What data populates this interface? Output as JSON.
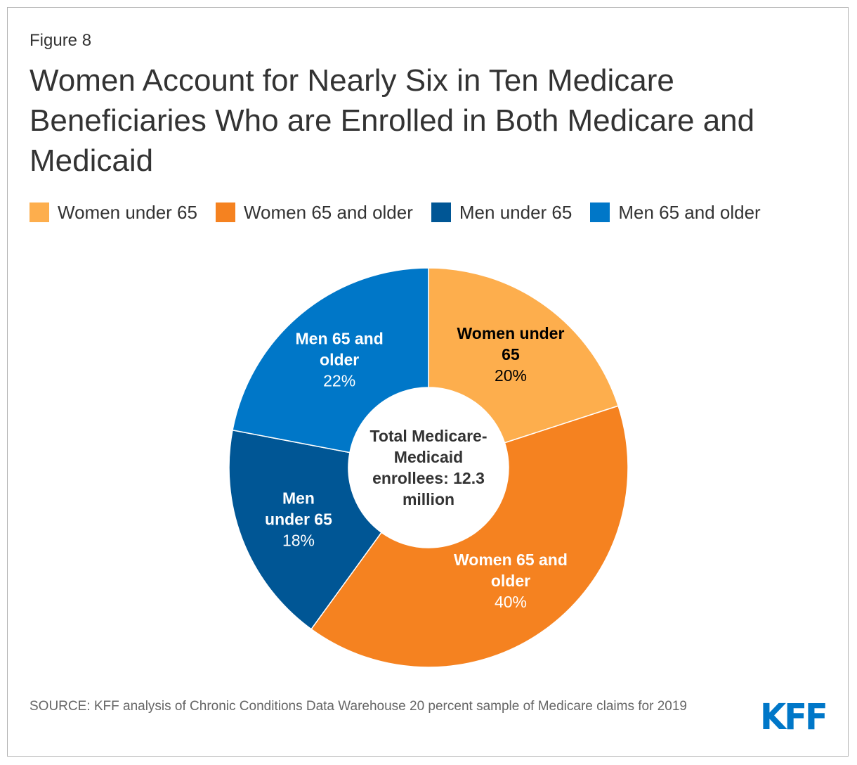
{
  "figure_label": "Figure 8",
  "title": "Women Account for Nearly Six in Ten Medicare Beneficiaries Who are Enrolled in Both Medicare and Medicaid",
  "legend": [
    {
      "label": "Women under 65",
      "color": "#fdae4d"
    },
    {
      "label": "Women 65 and older",
      "color": "#f58220"
    },
    {
      "label": "Men under 65",
      "color": "#005695"
    },
    {
      "label": "Men 65 and older",
      "color": "#0077c8"
    }
  ],
  "chart_data": {
    "type": "pie",
    "variant": "donut",
    "title": "Women Account for Nearly Six in Ten Medicare Beneficiaries Who are Enrolled in Both Medicare and Medicaid",
    "categories": [
      "Women under 65",
      "Women 65 and older",
      "Men under 65",
      "Men 65 and older"
    ],
    "values": [
      20,
      40,
      18,
      22
    ],
    "unit": "%",
    "slices": [
      {
        "name": "Women under 65",
        "label_lines": [
          "Women under",
          "65"
        ],
        "value_label": "20%",
        "value": 20,
        "color": "#fdae4d",
        "text_color": "#000000"
      },
      {
        "name": "Women 65 and older",
        "label_lines": [
          "Women 65 and",
          "older"
        ],
        "value_label": "40%",
        "value": 40,
        "color": "#f58220",
        "text_color": "#ffffff"
      },
      {
        "name": "Men under 65",
        "label_lines": [
          "Men",
          "under 65"
        ],
        "value_label": "18%",
        "value": 18,
        "color": "#005695",
        "text_color": "#ffffff"
      },
      {
        "name": "Men 65 and older",
        "label_lines": [
          "Men 65 and",
          "older"
        ],
        "value_label": "22%",
        "value": 22,
        "color": "#0077c8",
        "text_color": "#ffffff"
      }
    ],
    "center_label_lines": [
      "Total Medicare-",
      "Medicaid",
      "enrollees: 12.3",
      "million"
    ]
  },
  "source_text": "SOURCE: KFF analysis of Chronic Conditions Data Warehouse 20 percent sample of Medicare claims for 2019",
  "logo": {
    "text": "KFF",
    "color": "#0077c8"
  }
}
